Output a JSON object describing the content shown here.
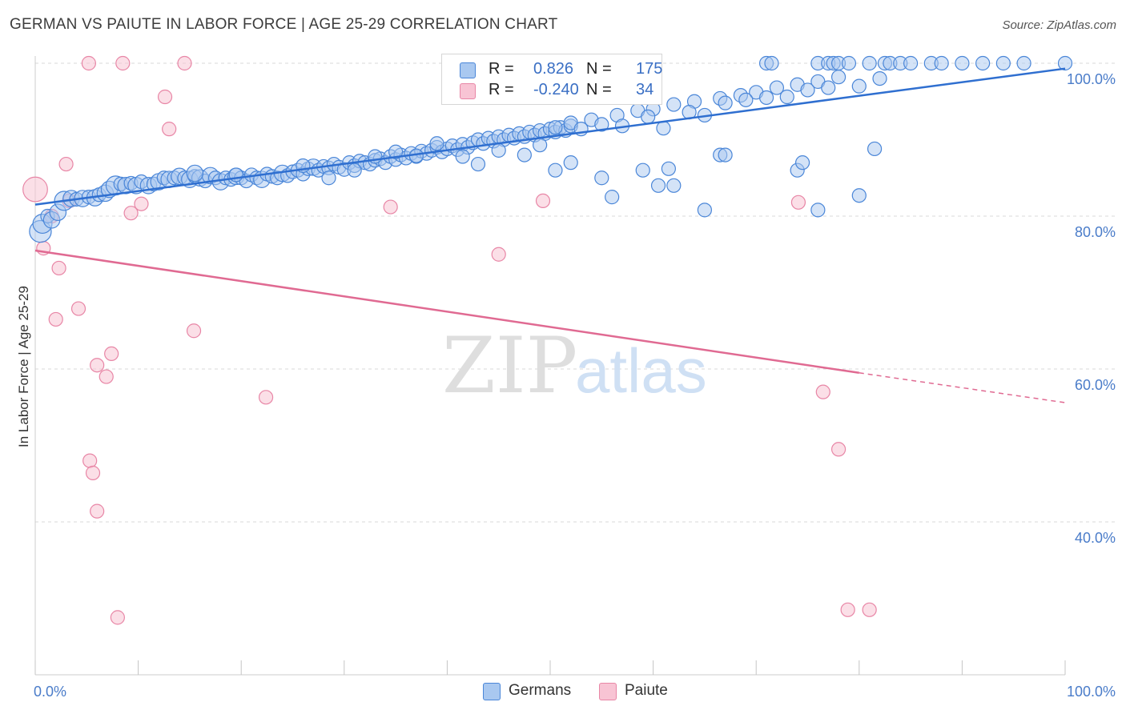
{
  "title": "GERMAN VS PAIUTE IN LABOR FORCE | AGE 25-29 CORRELATION CHART",
  "source": "Source: ZipAtlas.com",
  "watermark": {
    "zip": "ZIP",
    "atlas": "atlas"
  },
  "legend": {
    "rows": [
      {
        "r_label": "R =",
        "r_value": "0.826",
        "n_label": "N =",
        "n_value": "175"
      },
      {
        "r_label": "R =",
        "r_value": "-0.240",
        "n_label": "N =",
        "n_value": "34"
      }
    ]
  },
  "bottom_legend": {
    "germans": "Germans",
    "paiute": "Paiute"
  },
  "colors": {
    "germans_fill": "#a9c8f0",
    "germans_stroke": "#4a86d8",
    "germans_line": "#2f6fd0",
    "paiute_fill": "#f8c4d4",
    "paiute_stroke": "#e886a6",
    "paiute_line": "#e06a92",
    "axis_text": "#4a7cc9",
    "grid": "#d9d9d9"
  },
  "chart_data": {
    "type": "scatter",
    "title": "GERMAN VS PAIUTE IN LABOR FORCE | AGE 25-29 CORRELATION CHART",
    "ylabel": "In Labor Force | Age 25-29",
    "xlabel": "",
    "xlim": [
      0,
      100
    ],
    "ylim": [
      18,
      103
    ],
    "x_tick_labels": [
      "0.0%",
      "100.0%"
    ],
    "y_ticks": [
      {
        "value": 100,
        "label": "100.0%"
      },
      {
        "value": 80,
        "label": "80.0%"
      },
      {
        "value": 60,
        "label": "60.0%"
      },
      {
        "value": 40,
        "label": "40.0%"
      }
    ],
    "grid": true,
    "legend_position": "top-center",
    "series": [
      {
        "name": "Germans",
        "trend": {
          "x": [
            0,
            100
          ],
          "y": [
            81.5,
            99.3
          ]
        },
        "points": [
          [
            0.5,
            78,
            16
          ],
          [
            0.7,
            79,
            14
          ],
          [
            1.2,
            80,
            10
          ],
          [
            1.6,
            79.5,
            12
          ],
          [
            2.2,
            80.5,
            12
          ],
          [
            2.8,
            82,
            14
          ],
          [
            3.5,
            82.3,
            12
          ],
          [
            4,
            82.2,
            10
          ],
          [
            4.6,
            82.3,
            12
          ],
          [
            5.2,
            82.5,
            10
          ],
          [
            5.8,
            82.4,
            12
          ],
          [
            6.2,
            82.8,
            10
          ],
          [
            6.8,
            83,
            12
          ],
          [
            7.2,
            83.5,
            12
          ],
          [
            7.8,
            84,
            14
          ],
          [
            8.3,
            84.2,
            10
          ],
          [
            8.8,
            84,
            12
          ],
          [
            9.3,
            84.3,
            10
          ],
          [
            9.8,
            84,
            12
          ],
          [
            10.3,
            84.5,
            10
          ],
          [
            11,
            84,
            12
          ],
          [
            11.5,
            84.2,
            10
          ],
          [
            12,
            84.5,
            12
          ],
          [
            12.5,
            85,
            10
          ],
          [
            13,
            84.8,
            12
          ],
          [
            13.5,
            85,
            10
          ],
          [
            14,
            85.2,
            12
          ],
          [
            14.5,
            85,
            10
          ],
          [
            15,
            84.8,
            12
          ],
          [
            15.5,
            85.2,
            10
          ],
          [
            16,
            85,
            12
          ],
          [
            16.5,
            84.6,
            10
          ],
          [
            17,
            85.3,
            12
          ],
          [
            17.5,
            85,
            10
          ],
          [
            18,
            84.5,
            12
          ],
          [
            18.5,
            85,
            10
          ],
          [
            19,
            84.8,
            10
          ],
          [
            19.5,
            85.2,
            12
          ],
          [
            20,
            85,
            10
          ],
          [
            20.5,
            84.6,
            10
          ],
          [
            21,
            85.4,
            10
          ],
          [
            21.5,
            85,
            10
          ],
          [
            22,
            84.8,
            12
          ],
          [
            22.5,
            85.5,
            10
          ],
          [
            23,
            85.2,
            10
          ],
          [
            23.5,
            85,
            10
          ],
          [
            24,
            85.6,
            12
          ],
          [
            24.5,
            85.3,
            10
          ],
          [
            25,
            85.8,
            10
          ],
          [
            25.5,
            86,
            10
          ],
          [
            26,
            85.5,
            10
          ],
          [
            26.5,
            86.2,
            10
          ],
          [
            27,
            86.4,
            12
          ],
          [
            27.5,
            86,
            10
          ],
          [
            28,
            86.5,
            10
          ],
          [
            28.5,
            86.3,
            10
          ],
          [
            29,
            86.8,
            10
          ],
          [
            29.5,
            86.4,
            10
          ],
          [
            30,
            86.1,
            10
          ],
          [
            30.5,
            87,
            10
          ],
          [
            31,
            86.6,
            10
          ],
          [
            31.5,
            87.2,
            10
          ],
          [
            32,
            87,
            10
          ],
          [
            32.5,
            86.8,
            10
          ],
          [
            33,
            87.3,
            10
          ],
          [
            33.5,
            87.5,
            10
          ],
          [
            34,
            87,
            10
          ],
          [
            34.5,
            87.8,
            10
          ],
          [
            35,
            87.4,
            10
          ],
          [
            35.5,
            88,
            10
          ],
          [
            36,
            87.6,
            10
          ],
          [
            36.5,
            88.2,
            10
          ],
          [
            37,
            87.8,
            10
          ],
          [
            37.5,
            88.5,
            10
          ],
          [
            38,
            88.2,
            10
          ],
          [
            38.5,
            88.6,
            10
          ],
          [
            39,
            89,
            10
          ],
          [
            39.5,
            88.4,
            10
          ],
          [
            40,
            88.8,
            10
          ],
          [
            40.5,
            89.2,
            10
          ],
          [
            41,
            88.7,
            10
          ],
          [
            41.5,
            89.4,
            10
          ],
          [
            42,
            89,
            10
          ],
          [
            42.5,
            89.6,
            10
          ],
          [
            43,
            90,
            10
          ],
          [
            43.5,
            89.5,
            10
          ],
          [
            44,
            90.2,
            10
          ],
          [
            44.5,
            89.8,
            10
          ],
          [
            45,
            90.4,
            10
          ],
          [
            45.5,
            90,
            10
          ],
          [
            46,
            90.6,
            10
          ],
          [
            46.5,
            90.2,
            10
          ],
          [
            47,
            90.8,
            10
          ],
          [
            47.5,
            90.4,
            10
          ],
          [
            48,
            91,
            10
          ],
          [
            48.5,
            90.6,
            10
          ],
          [
            49,
            91.2,
            10
          ],
          [
            49.5,
            90.8,
            10
          ],
          [
            50,
            91.4,
            10
          ],
          [
            50.5,
            91,
            10
          ],
          [
            51,
            91.6,
            10
          ],
          [
            51.5,
            91.2,
            10
          ],
          [
            52,
            91.8,
            10
          ],
          [
            15.5,
            85.6,
            12
          ],
          [
            19.5,
            85.4,
            10
          ],
          [
            26,
            86.6,
            10
          ],
          [
            28.5,
            85,
            10
          ],
          [
            31,
            86,
            10
          ],
          [
            33,
            87.8,
            10
          ],
          [
            35,
            88.4,
            10
          ],
          [
            37,
            87.9,
            10
          ],
          [
            39,
            89.5,
            10
          ],
          [
            41.5,
            87.8,
            10
          ],
          [
            43,
            86.8,
            10
          ],
          [
            45,
            88.6,
            10
          ],
          [
            47.5,
            88,
            10
          ],
          [
            49,
            89.3,
            10
          ],
          [
            50.5,
            91.6,
            10
          ],
          [
            52,
            92.2,
            10
          ],
          [
            54,
            92.6,
            10
          ],
          [
            56.5,
            93.2,
            10
          ],
          [
            58.5,
            93.8,
            10
          ],
          [
            60,
            94,
            10
          ],
          [
            62,
            94.6,
            10
          ],
          [
            64,
            95,
            10
          ],
          [
            66.5,
            95.4,
            10
          ],
          [
            68.5,
            95.8,
            10
          ],
          [
            70,
            96.2,
            10
          ],
          [
            72,
            96.8,
            10
          ],
          [
            74,
            97.2,
            10
          ],
          [
            76,
            97.6,
            10
          ],
          [
            78,
            98.2,
            10
          ],
          [
            53,
            91.4,
            10
          ],
          [
            55,
            92,
            10
          ],
          [
            57,
            91.8,
            10
          ],
          [
            59.5,
            93,
            10
          ],
          [
            61,
            91.5,
            10
          ],
          [
            63.5,
            93.6,
            10
          ],
          [
            65,
            93.2,
            10
          ],
          [
            67,
            94.8,
            10
          ],
          [
            69,
            95.2,
            10
          ],
          [
            71,
            95.5,
            10
          ],
          [
            73,
            95.6,
            10
          ],
          [
            75,
            96.5,
            10
          ],
          [
            77,
            96.8,
            10
          ],
          [
            80,
            97,
            10
          ],
          [
            82,
            98,
            10
          ],
          [
            50.5,
            86,
            10
          ],
          [
            52,
            87,
            10
          ],
          [
            55,
            85,
            10
          ],
          [
            56,
            82.5,
            10
          ],
          [
            59,
            86,
            10
          ],
          [
            60.5,
            84,
            10
          ],
          [
            61.5,
            86.2,
            10
          ],
          [
            62,
            84,
            10
          ],
          [
            65,
            80.8,
            10
          ],
          [
            66.5,
            88,
            10
          ],
          [
            67,
            88,
            10
          ],
          [
            74,
            86,
            10
          ],
          [
            74.5,
            87,
            10
          ],
          [
            76,
            80.8,
            10
          ],
          [
            80,
            82.7,
            10
          ],
          [
            81.5,
            88.8,
            10
          ],
          [
            71,
            100,
            10
          ],
          [
            71.5,
            100,
            10
          ],
          [
            76,
            100,
            10
          ],
          [
            77,
            100,
            10
          ],
          [
            77.5,
            100,
            10
          ],
          [
            78,
            100,
            10
          ],
          [
            79,
            100,
            10
          ],
          [
            81,
            100,
            10
          ],
          [
            82.5,
            100,
            10
          ],
          [
            83,
            100,
            10
          ],
          [
            84,
            100,
            10
          ],
          [
            85,
            100,
            10
          ],
          [
            87,
            100,
            10
          ],
          [
            88,
            100,
            10
          ],
          [
            90,
            100,
            10
          ],
          [
            92,
            100,
            10
          ],
          [
            94,
            100,
            10
          ],
          [
            96,
            100,
            10
          ],
          [
            100,
            100,
            10
          ],
          [
            46,
            100,
            10
          ]
        ]
      },
      {
        "name": "Paiute",
        "trend": {
          "x": [
            0,
            80,
            100
          ],
          "y": [
            75.5,
            59.5,
            55.6
          ],
          "solid_until_x": 80
        },
        "points": [
          [
            0,
            83.5,
            18
          ],
          [
            0.8,
            75.8,
            10
          ],
          [
            1.6,
            80,
            10
          ],
          [
            2,
            66.5,
            10
          ],
          [
            2.3,
            73.2,
            10
          ],
          [
            3,
            86.8,
            10
          ],
          [
            3.3,
            82,
            10
          ],
          [
            4.2,
            67.9,
            10
          ],
          [
            5.2,
            100,
            10
          ],
          [
            5.3,
            48,
            10
          ],
          [
            5.6,
            46.4,
            10
          ],
          [
            6,
            41.4,
            10
          ],
          [
            6,
            60.5,
            10
          ],
          [
            6.9,
            59,
            10
          ],
          [
            7.4,
            62,
            10
          ],
          [
            8,
            27.5,
            10
          ],
          [
            8.5,
            100,
            10
          ],
          [
            9.3,
            80.4,
            10
          ],
          [
            10.3,
            81.6,
            10
          ],
          [
            12.6,
            95.6,
            10
          ],
          [
            13,
            91.4,
            10
          ],
          [
            14.5,
            100,
            10
          ],
          [
            15.4,
            65,
            10
          ],
          [
            22.4,
            56.3,
            10
          ],
          [
            34.5,
            81.2,
            10
          ],
          [
            45,
            75,
            10
          ],
          [
            45.4,
            100,
            10
          ],
          [
            45.6,
            100,
            10
          ],
          [
            49.3,
            82,
            10
          ],
          [
            74.1,
            81.8,
            10
          ],
          [
            76.5,
            57,
            10
          ],
          [
            78,
            49.5,
            10
          ],
          [
            78.9,
            28.5,
            10
          ],
          [
            81,
            28.5,
            10
          ]
        ]
      }
    ]
  }
}
